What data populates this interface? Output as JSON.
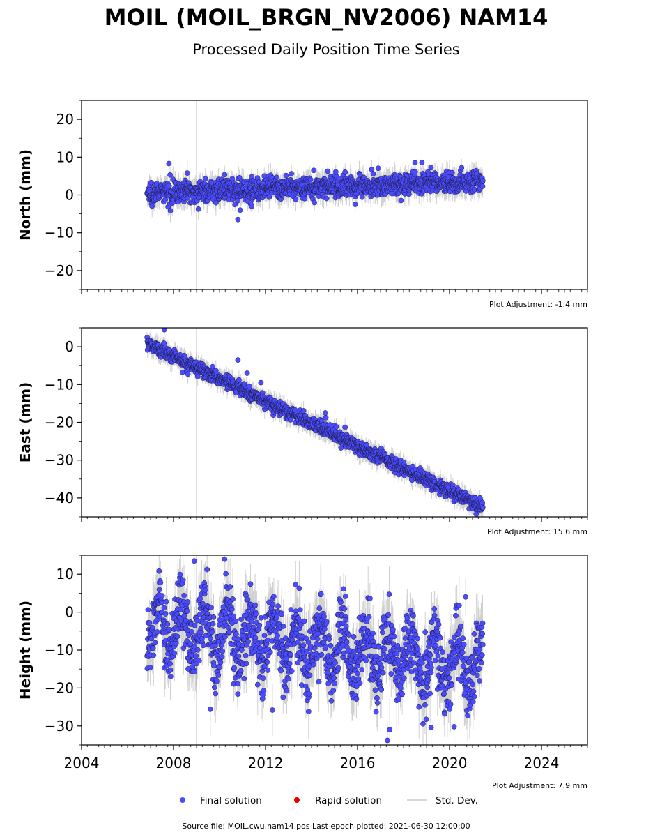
{
  "title": "MOIL (MOIL_BRGN_NV2006) NAM14",
  "subtitle": "Processed Daily Position Time Series",
  "chart_data": [
    {
      "type": "scatter",
      "ylabel": "North (mm)",
      "xlim": [
        2004,
        2026
      ],
      "ylim": [
        -25,
        25
      ],
      "yticks": [
        -20,
        -10,
        0,
        10,
        20
      ],
      "xticks": [
        2004,
        2008,
        2012,
        2016,
        2020,
        2024
      ],
      "vline_x": 2009.0,
      "adjustment_label": "Plot Adjustment: -1.4 mm",
      "trend": {
        "start": [
          2006.85,
          0.5
        ],
        "end": [
          2021.45,
          3.6
        ]
      },
      "noise_sd": 1.4,
      "errorbar": 2.5,
      "outliers": [
        [
          2007.8,
          8.3
        ],
        [
          2008.6,
          5.8
        ],
        [
          2010.8,
          -6.5
        ],
        [
          2010.9,
          -4.0
        ],
        [
          2011.4,
          -3.0
        ],
        [
          2014.1,
          6.5
        ],
        [
          2015.9,
          -2.5
        ],
        [
          2018.5,
          8.5
        ],
        [
          2018.8,
          8.6
        ]
      ]
    },
    {
      "type": "scatter",
      "ylabel": "East (mm)",
      "xlim": [
        2004,
        2026
      ],
      "ylim": [
        -45,
        5
      ],
      "yticks": [
        -40,
        -30,
        -20,
        -10,
        0
      ],
      "xticks": [
        2004,
        2008,
        2012,
        2016,
        2020,
        2024
      ],
      "vline_x": 2009.0,
      "adjustment_label": "Plot Adjustment: 15.6 mm",
      "trend": {
        "start": [
          2006.85,
          1.0
        ],
        "end": [
          2021.45,
          -42.5
        ]
      },
      "noise_sd": 0.9,
      "errorbar": 2.0,
      "outliers": [
        [
          2007.6,
          4.5
        ],
        [
          2010.8,
          -3.5
        ],
        [
          2011.2,
          -7.0
        ],
        [
          2011.8,
          -9.5
        ],
        [
          2014.6,
          -17.5
        ],
        [
          2016.4,
          -26.0
        ]
      ]
    },
    {
      "type": "scatter",
      "ylabel": "Height (mm)",
      "xlim": [
        2004,
        2026
      ],
      "ylim": [
        -35,
        15
      ],
      "yticks": [
        -30,
        -20,
        -10,
        0,
        10
      ],
      "xticks": [
        2004,
        2008,
        2012,
        2016,
        2020,
        2024
      ],
      "xtick_labels": [
        "2004",
        "2008",
        "2012",
        "2016",
        "2020",
        "2024"
      ],
      "vline_x": 2009.0,
      "adjustment_label": "Plot Adjustment: 7.9 mm",
      "trend": {
        "start": [
          2006.85,
          -3.0
        ],
        "end": [
          2021.45,
          -15.0
        ]
      },
      "noise_sd": 4.5,
      "errorbar": 6.0,
      "seasonal_amplitude": 6,
      "outliers": [
        [
          2008.9,
          13.5
        ],
        [
          2009.6,
          -25.6
        ],
        [
          2010.8,
          -21.6
        ],
        [
          2012.3,
          -25.8
        ],
        [
          2017.3,
          -33.8
        ],
        [
          2017.4,
          -31.0
        ],
        [
          2019.2,
          -30.4
        ],
        [
          2020.2,
          -30.2
        ],
        [
          2020.7,
          4.0
        ]
      ]
    }
  ],
  "legend": [
    {
      "label": "Final solution",
      "color": "#4b4bff",
      "marker": "circle"
    },
    {
      "label": "Rapid solution",
      "color": "#e00000",
      "marker": "circle"
    },
    {
      "label": "Std. Dev.",
      "color": "#cccccc",
      "marker": "line"
    }
  ],
  "footer": "Source file: MOIL.cwu.nam14.pos  Last epoch plotted: 2021-06-30 12:00:00",
  "colors": {
    "final": "#4b4bff",
    "rapid": "#e00000",
    "errorbar": "#777777",
    "vline": "#cccccc"
  }
}
